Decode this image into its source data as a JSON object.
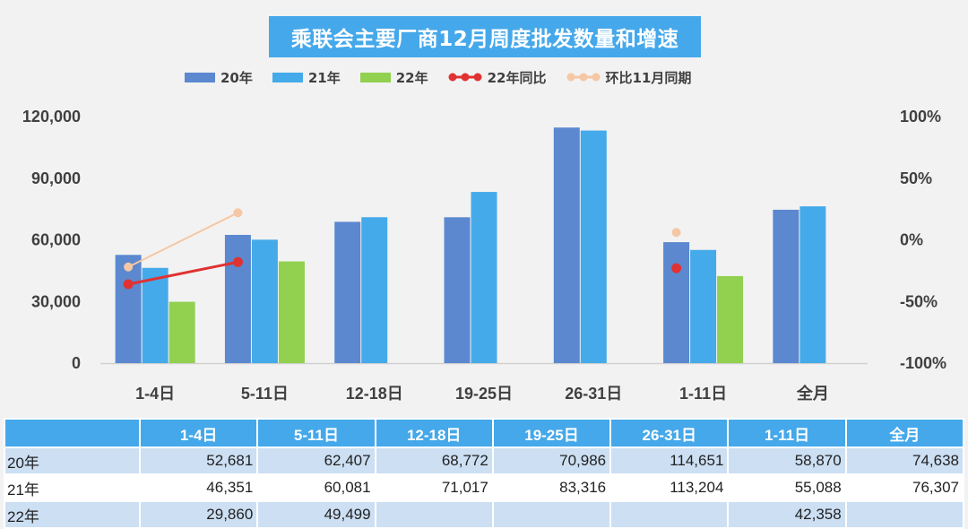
{
  "title": "乘联会主要厂商12月周度批发数量和增速",
  "legend": [
    {
      "label": "20年",
      "color": "#5b88cf",
      "kind": "bar"
    },
    {
      "label": "21年",
      "color": "#45aaea",
      "kind": "bar"
    },
    {
      "label": "22年",
      "color": "#92d050",
      "kind": "bar"
    },
    {
      "label": "22年同比",
      "color": "#e03232",
      "kind": "line"
    },
    {
      "label": "环比11月同期",
      "color": "#f5c7a4",
      "kind": "line"
    }
  ],
  "chart_data": {
    "type": "bar",
    "categories": [
      "1-4日",
      "5-11日",
      "12-18日",
      "19-25日",
      "26-31日",
      "1-11日",
      "全月"
    ],
    "series": [
      {
        "name": "20年",
        "values": [
          52681,
          62407,
          68772,
          70986,
          114651,
          58870,
          74638
        ]
      },
      {
        "name": "21年",
        "values": [
          46351,
          60081,
          71017,
          83316,
          113204,
          55088,
          76307
        ]
      },
      {
        "name": "22年",
        "values": [
          29860,
          49499,
          null,
          null,
          null,
          42358,
          null
        ]
      }
    ],
    "line_series": [
      {
        "name": "22年同比",
        "axis": "right",
        "values": [
          -0.36,
          -0.18,
          null,
          null,
          null,
          -0.23,
          null
        ],
        "segments": [
          [
            0,
            1
          ],
          [
            5,
            5
          ]
        ]
      },
      {
        "name": "环比11月同期",
        "axis": "right",
        "values": [
          -0.22,
          0.22,
          null,
          null,
          null,
          0.06,
          null
        ],
        "segments": [
          [
            0,
            1
          ],
          [
            5,
            5
          ]
        ]
      }
    ],
    "y_left": {
      "ylim": [
        0,
        120000
      ],
      "ticks": [
        "0",
        "30,000",
        "60,000",
        "90,000",
        "120,000"
      ]
    },
    "y_right": {
      "ylim": [
        -1,
        1
      ],
      "ticks": [
        "-100%",
        "-50%",
        "0%",
        "50%",
        "100%"
      ]
    },
    "grid": false,
    "legend_position": "top"
  },
  "table": {
    "headers": [
      "",
      "1-4日",
      "5-11日",
      "12-18日",
      "19-25日",
      "26-31日",
      "1-11日",
      "全月"
    ],
    "rows": [
      [
        "20年",
        "52,681",
        "62,407",
        "68,772",
        "70,986",
        "114,651",
        "58,870",
        "74,638"
      ],
      [
        "21年",
        "46,351",
        "60,081",
        "71,017",
        "83,316",
        "113,204",
        "55,088",
        "76,307"
      ],
      [
        "22年",
        "29,860",
        "49,499",
        "",
        "",
        "",
        "42,358",
        ""
      ]
    ]
  }
}
